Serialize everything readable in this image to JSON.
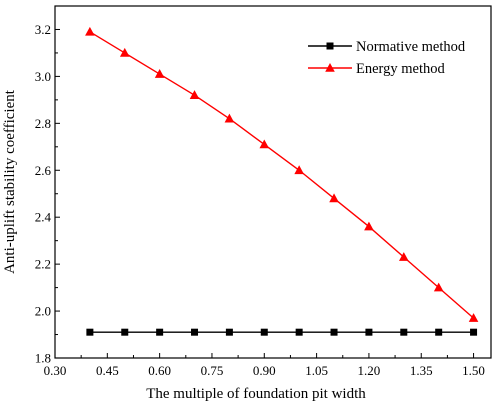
{
  "chart_data": {
    "type": "line",
    "title": "",
    "xlabel": "The multiple of foundation pit width",
    "ylabel": "Anti-uplift stability coefficient",
    "xlim": [
      0.3,
      1.55
    ],
    "ylim": [
      1.8,
      3.3
    ],
    "xticks": [
      "0.30",
      "0.45",
      "0.60",
      "0.75",
      "0.90",
      "1.05",
      "1.20",
      "1.35",
      "1.50"
    ],
    "yticks": [
      "1.8",
      "2.0",
      "2.2",
      "2.4",
      "2.6",
      "2.8",
      "3.0",
      "3.2"
    ],
    "x": [
      0.4,
      0.5,
      0.6,
      0.7,
      0.8,
      0.9,
      1.0,
      1.1,
      1.2,
      1.3,
      1.4,
      1.5
    ],
    "grid": false,
    "legend_position": "top-right",
    "series": [
      {
        "name": "Normative method",
        "color": "#000000",
        "marker": "square",
        "values": [
          1.91,
          1.91,
          1.91,
          1.91,
          1.91,
          1.91,
          1.91,
          1.91,
          1.91,
          1.91,
          1.91,
          1.91
        ]
      },
      {
        "name": "Energy method",
        "color": "#ff0000",
        "marker": "triangle",
        "values": [
          3.19,
          3.1,
          3.01,
          2.92,
          2.82,
          2.71,
          2.6,
          2.48,
          2.36,
          2.23,
          2.1,
          1.97
        ]
      }
    ]
  }
}
